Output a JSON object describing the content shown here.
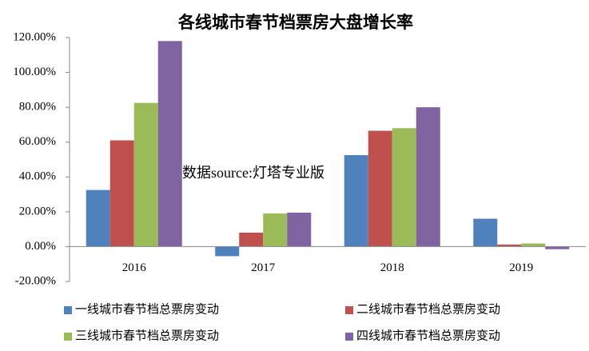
{
  "chart_data": {
    "type": "bar",
    "title": "各线城市春节档票房大盘增长率",
    "annotation": "数据source:灯塔专业版",
    "categories": [
      "2016",
      "2017",
      "2018",
      "2019"
    ],
    "series": [
      {
        "name": "一线城市春节档总票房变动",
        "color": "#4f81bd",
        "values": [
          32.5,
          -5.5,
          52.5,
          16
        ]
      },
      {
        "name": "二线城市春节档总票房变动",
        "color": "#c0504d",
        "values": [
          61,
          8,
          66.5,
          1.2
        ]
      },
      {
        "name": "三线城市春节档总票房变动",
        "color": "#9bbb59",
        "values": [
          82.5,
          19,
          68,
          1.8
        ]
      },
      {
        "name": "四线城市春节档总票房变动",
        "color": "#8064a2",
        "values": [
          118,
          19.5,
          80,
          -1.5
        ]
      }
    ],
    "ylim": [
      -20,
      120
    ],
    "yticks": [
      {
        "value": -20,
        "label": "-20.00%"
      },
      {
        "value": 0,
        "label": "0.00%"
      },
      {
        "value": 20,
        "label": "20.00%"
      },
      {
        "value": 40,
        "label": "40.00%"
      },
      {
        "value": 60,
        "label": "60.00%"
      },
      {
        "value": 80,
        "label": "80.00%"
      },
      {
        "value": 100,
        "label": "100.00%"
      },
      {
        "value": 120,
        "label": "120.00%"
      }
    ],
    "grid": false,
    "legend": "bottom"
  }
}
